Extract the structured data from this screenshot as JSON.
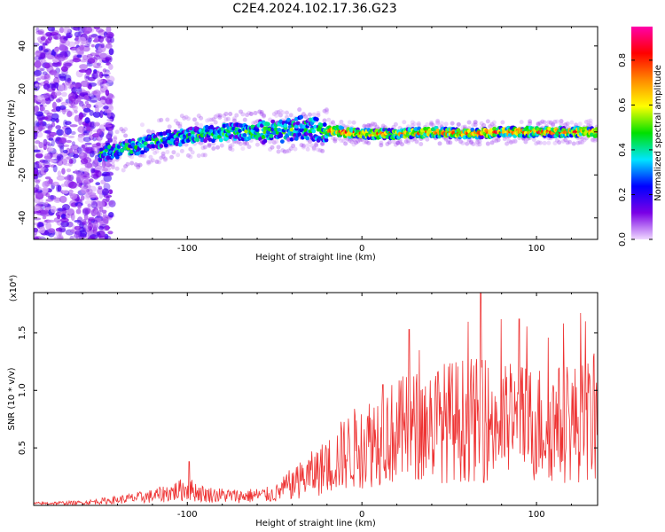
{
  "title": "C2E4.2024.102.17.36.G23",
  "chart_data": [
    {
      "type": "heatmap",
      "xlabel": "Height of straight line (km)",
      "ylabel": "Frequency (Hz)",
      "xlim": [
        -188,
        135
      ],
      "ylim": [
        -50,
        49
      ],
      "x_ticks": [
        -100,
        0,
        100
      ],
      "y_ticks": [
        40,
        20,
        0,
        -20,
        -40
      ],
      "grid": false,
      "ridge_center_hz": [
        {
          "x": -150,
          "y": -10
        },
        {
          "x": -130,
          "y": -7
        },
        {
          "x": -110,
          "y": -3
        },
        {
          "x": -90,
          "y": -1
        },
        {
          "x": -75,
          "y": 0
        },
        {
          "x": -60,
          "y": 0
        },
        {
          "x": -45,
          "y": 0
        },
        {
          "x": -35,
          "y": 2
        },
        {
          "x": -25,
          "y": 1
        },
        {
          "x": -10,
          "y": 0
        },
        {
          "x": 0,
          "y": -1
        },
        {
          "x": 20,
          "y": -1
        },
        {
          "x": 40,
          "y": 0
        },
        {
          "x": 60,
          "y": -1
        },
        {
          "x": 80,
          "y": 0
        },
        {
          "x": 100,
          "y": 0
        },
        {
          "x": 120,
          "y": 0
        },
        {
          "x": 135,
          "y": 0
        }
      ],
      "colorbar": {
        "label": "Normalized spectral amplitude",
        "range": [
          0.0,
          0.95
        ],
        "ticks": [
          "0.0",
          "0.2",
          "0.4",
          "0.6",
          "0.8"
        ],
        "tick_values": [
          0.0,
          0.2,
          0.4,
          0.6,
          0.8
        ],
        "colors": [
          "#f0d8ff",
          "#7a00e6",
          "#0000ff",
          "#00e5ff",
          "#00e000",
          "#ffff00",
          "#ff8800",
          "#ff0000",
          "#ff00aa"
        ]
      }
    },
    {
      "type": "line",
      "xlabel": "Height of straight line (km)",
      "ylabel": "SNR (10 * v/v)",
      "y_multiplier": "(x10⁴)",
      "xlim": [
        -188,
        135
      ],
      "ylim": [
        0,
        1.85
      ],
      "x_ticks": [
        -100,
        0,
        100
      ],
      "y_ticks": [
        0.5,
        1.0,
        1.5
      ],
      "y_tick_labels": [
        "0.5",
        "1.0",
        "1.5"
      ],
      "grid": false,
      "color": "#ee3333",
      "envelope_x10e4": [
        {
          "x": -188,
          "y": 0.02
        },
        {
          "x": -160,
          "y": 0.03
        },
        {
          "x": -140,
          "y": 0.06
        },
        {
          "x": -120,
          "y": 0.1
        },
        {
          "x": -100,
          "y": 0.18
        },
        {
          "x": -90,
          "y": 0.12
        },
        {
          "x": -70,
          "y": 0.1
        },
        {
          "x": -50,
          "y": 0.12
        },
        {
          "x": -35,
          "y": 0.3
        },
        {
          "x": -20,
          "y": 0.45
        },
        {
          "x": -10,
          "y": 0.6
        },
        {
          "x": 0,
          "y": 0.7
        },
        {
          "x": 10,
          "y": 0.8
        },
        {
          "x": 20,
          "y": 0.85
        },
        {
          "x": 40,
          "y": 0.95
        },
        {
          "x": 60,
          "y": 1.0
        },
        {
          "x": 80,
          "y": 0.95
        },
        {
          "x": 100,
          "y": 0.95
        },
        {
          "x": 120,
          "y": 0.95
        },
        {
          "x": 135,
          "y": 1.0
        }
      ],
      "peak_values_x10e4": [
        {
          "x": -99,
          "y": 0.38
        },
        {
          "x": 12,
          "y": 1.05
        },
        {
          "x": 27,
          "y": 1.53
        },
        {
          "x": 68,
          "y": 1.85
        },
        {
          "x": 90,
          "y": 1.62
        },
        {
          "x": 128,
          "y": 1.6
        }
      ]
    }
  ]
}
